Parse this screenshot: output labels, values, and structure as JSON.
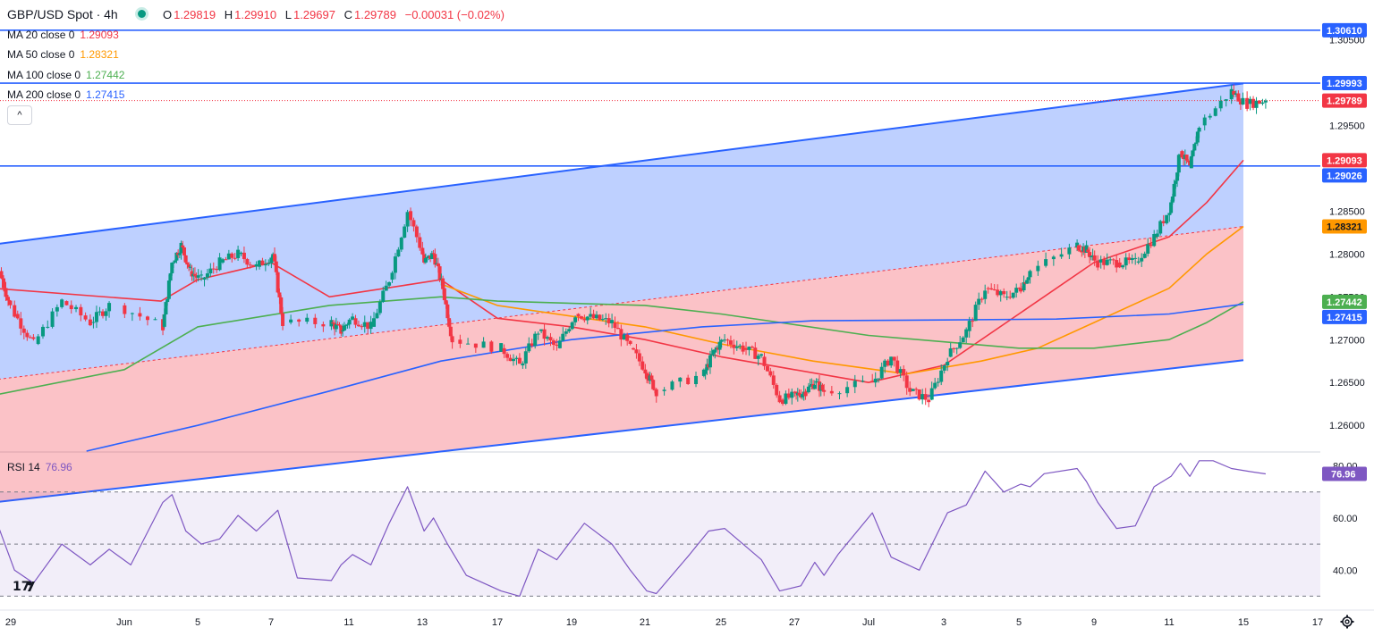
{
  "header": {
    "title": "GBP/USD Spot · 4h",
    "open_label": "O",
    "open": "1.29819",
    "high_label": "H",
    "high": "1.29910",
    "low_label": "L",
    "low": "1.29697",
    "close_label": "C",
    "close": "1.29789",
    "change": "−0.00031 (−0.02%)"
  },
  "legend": [
    {
      "label": "MA 20 close 0",
      "value": "1.29093",
      "color": "#f23645"
    },
    {
      "label": "MA 50 close 0",
      "value": "1.28321",
      "color": "#ff9800"
    },
    {
      "label": "MA 100 close 0",
      "value": "1.27442",
      "color": "#4caf50"
    },
    {
      "label": "MA 200 close 0",
      "value": "1.27415",
      "color": "#2962ff"
    }
  ],
  "collapse_label": "^",
  "rsi": {
    "label": "RSI 14",
    "value": "76.96",
    "color": "#7e57c2"
  },
  "logo_text": "17",
  "chart_data": {
    "type": "candlestick",
    "symbol": "GBP/USD Spot",
    "timeframe": "4h",
    "price_axis": {
      "ylim": [
        1.257,
        1.309
      ],
      "ticks": [
        "1.30500",
        "1.29500",
        "1.28500",
        "1.28000",
        "1.27500",
        "1.27000",
        "1.26500",
        "1.26000"
      ]
    },
    "x_axis": {
      "ticks": [
        {
          "label": "29",
          "date": "2024-05-29"
        },
        {
          "label": "Jun",
          "date": "2024-06-01"
        },
        {
          "label": "5",
          "date": "2024-06-05"
        },
        {
          "label": "7",
          "date": "2024-06-07"
        },
        {
          "label": "11",
          "date": "2024-06-11"
        },
        {
          "label": "13",
          "date": "2024-06-13"
        },
        {
          "label": "17",
          "date": "2024-06-17"
        },
        {
          "label": "19",
          "date": "2024-06-19"
        },
        {
          "label": "21",
          "date": "2024-06-21"
        },
        {
          "label": "25",
          "date": "2024-06-25"
        },
        {
          "label": "27",
          "date": "2024-06-27"
        },
        {
          "label": "Jul",
          "date": "2024-07-01"
        },
        {
          "label": "3",
          "date": "2024-07-03"
        },
        {
          "label": "5",
          "date": "2024-07-05"
        },
        {
          "label": "9",
          "date": "2024-07-09"
        },
        {
          "label": "11",
          "date": "2024-07-11"
        },
        {
          "label": "15",
          "date": "2024-07-15"
        },
        {
          "label": "17",
          "date": "2024-07-17"
        }
      ]
    },
    "close_path": [
      [
        "2024-05-28",
        1.278
      ],
      [
        "2024-05-29",
        1.273
      ],
      [
        "2024-05-29",
        1.2695
      ],
      [
        "2024-05-30",
        1.2745
      ],
      [
        "2024-05-31",
        1.272
      ],
      [
        "2024-05-31",
        1.274
      ],
      [
        "2024-06-03",
        1.2715
      ],
      [
        "2024-06-03",
        1.279
      ],
      [
        "2024-06-04",
        1.281
      ],
      [
        "2024-06-04",
        1.278
      ],
      [
        "2024-06-05",
        1.277
      ],
      [
        "2024-06-05",
        1.279
      ],
      [
        "2024-06-06",
        1.28
      ],
      [
        "2024-06-06",
        1.2785
      ],
      [
        "2024-06-07",
        1.28
      ],
      [
        "2024-06-07",
        1.272
      ],
      [
        "2024-06-10",
        1.272
      ],
      [
        "2024-06-10",
        1.271
      ],
      [
        "2024-06-11",
        1.2725
      ],
      [
        "2024-06-11",
        1.2715
      ],
      [
        "2024-06-12",
        1.277
      ],
      [
        "2024-06-12",
        1.285
      ],
      [
        "2024-06-13",
        1.279
      ],
      [
        "2024-06-13",
        1.28
      ],
      [
        "2024-06-14",
        1.276
      ],
      [
        "2024-06-14",
        1.27
      ],
      [
        "2024-06-17",
        1.269
      ],
      [
        "2024-06-17",
        1.267
      ],
      [
        "2024-06-18",
        1.271
      ],
      [
        "2024-06-18",
        1.269
      ],
      [
        "2024-06-19",
        1.273
      ],
      [
        "2024-06-19",
        1.2725
      ],
      [
        "2024-06-20",
        1.272
      ],
      [
        "2024-06-20",
        1.269
      ],
      [
        "2024-06-21",
        1.266
      ],
      [
        "2024-06-21",
        1.264
      ],
      [
        "2024-06-24",
        1.266
      ],
      [
        "2024-06-24",
        1.2685
      ],
      [
        "2024-06-25",
        1.27
      ],
      [
        "2024-06-25",
        1.269
      ],
      [
        "2024-06-26",
        1.268
      ],
      [
        "2024-06-26",
        1.263
      ],
      [
        "2024-06-27",
        1.2635
      ],
      [
        "2024-06-27",
        1.264
      ],
      [
        "2024-06-28",
        1.265
      ],
      [
        "2024-06-28",
        1.264
      ],
      [
        "2024-07-01",
        1.265
      ],
      [
        "2024-07-01",
        1.268
      ],
      [
        "2024-07-02",
        1.264
      ],
      [
        "2024-07-02",
        1.263
      ],
      [
        "2024-07-03",
        1.268
      ],
      [
        "2024-07-03",
        1.271
      ],
      [
        "2024-07-04",
        1.276
      ],
      [
        "2024-07-04",
        1.275
      ],
      [
        "2024-07-05",
        1.276
      ],
      [
        "2024-07-05",
        1.278
      ],
      [
        "2024-07-08",
        1.281
      ],
      [
        "2024-07-08",
        1.2805
      ],
      [
        "2024-07-09",
        1.279
      ],
      [
        "2024-07-09",
        1.279
      ],
      [
        "2024-07-10",
        1.279
      ],
      [
        "2024-07-10",
        1.282
      ],
      [
        "2024-07-11",
        1.286
      ],
      [
        "2024-07-11",
        1.292
      ],
      [
        "2024-07-12",
        1.29
      ],
      [
        "2024-07-12",
        1.295
      ],
      [
        "2024-07-14",
        1.299
      ],
      [
        "2024-07-15",
        1.2975
      ],
      [
        "2024-07-15",
        1.29789
      ]
    ],
    "moving_averages": [
      {
        "name": "MA 20",
        "color": "#f23645",
        "last": 1.29093,
        "points": [
          [
            "2024-05-28",
            1.276
          ],
          [
            "2024-06-03",
            1.2745
          ],
          [
            "2024-06-05",
            1.277
          ],
          [
            "2024-06-07",
            1.279
          ],
          [
            "2024-06-10",
            1.275
          ],
          [
            "2024-06-12",
            1.276
          ],
          [
            "2024-06-14",
            1.277
          ],
          [
            "2024-06-17",
            1.2725
          ],
          [
            "2024-06-19",
            1.2715
          ],
          [
            "2024-06-21",
            1.27
          ],
          [
            "2024-06-25",
            1.268
          ],
          [
            "2024-06-27",
            1.2665
          ],
          [
            "2024-07-01",
            1.265
          ],
          [
            "2024-07-03",
            1.267
          ],
          [
            "2024-07-05",
            1.273
          ],
          [
            "2024-07-09",
            1.279
          ],
          [
            "2024-07-11",
            1.282
          ],
          [
            "2024-07-13",
            1.286
          ],
          [
            "2024-07-15",
            1.29093
          ]
        ]
      },
      {
        "name": "MA 50",
        "color": "#ff9800",
        "last": 1.28321,
        "points": [
          [
            "2024-06-14",
            1.2765
          ],
          [
            "2024-06-17",
            1.274
          ],
          [
            "2024-06-21",
            1.2715
          ],
          [
            "2024-06-25",
            1.2695
          ],
          [
            "2024-06-28",
            1.2675
          ],
          [
            "2024-07-02",
            1.266
          ],
          [
            "2024-07-04",
            1.2675
          ],
          [
            "2024-07-06",
            1.269
          ],
          [
            "2024-07-09",
            1.272
          ],
          [
            "2024-07-11",
            1.276
          ],
          [
            "2024-07-13",
            1.28
          ],
          [
            "2024-07-15",
            1.28321
          ]
        ]
      },
      {
        "name": "MA 100",
        "color": "#4caf50",
        "last": 1.27442,
        "points": [
          [
            "2024-05-28",
            1.2635
          ],
          [
            "2024-06-01",
            1.2665
          ],
          [
            "2024-06-05",
            1.2715
          ],
          [
            "2024-06-10",
            1.274
          ],
          [
            "2024-06-14",
            1.275
          ],
          [
            "2024-06-17",
            1.2745
          ],
          [
            "2024-06-21",
            1.274
          ],
          [
            "2024-06-25",
            1.273
          ],
          [
            "2024-07-01",
            1.2705
          ],
          [
            "2024-07-05",
            1.269
          ],
          [
            "2024-07-09",
            1.269
          ],
          [
            "2024-07-11",
            1.27
          ],
          [
            "2024-07-13",
            1.272
          ],
          [
            "2024-07-15",
            1.27442
          ]
        ]
      },
      {
        "name": "MA 200",
        "color": "#2962ff",
        "last": 1.27415,
        "points": [
          [
            "2024-05-31",
            1.257
          ],
          [
            "2024-06-05",
            1.26
          ],
          [
            "2024-06-10",
            1.264
          ],
          [
            "2024-06-14",
            1.2675
          ],
          [
            "2024-06-19",
            1.27
          ],
          [
            "2024-06-24",
            1.2715
          ],
          [
            "2024-06-28",
            1.2722
          ],
          [
            "2024-07-03",
            1.2723
          ],
          [
            "2024-07-07",
            1.2724
          ],
          [
            "2024-07-11",
            1.273
          ],
          [
            "2024-07-15",
            1.27415
          ]
        ]
      }
    ],
    "horizontal_levels": [
      {
        "value": 1.3061,
        "label": "1.30610",
        "color": "#2962ff"
      },
      {
        "value": 1.29993,
        "label": "1.29993",
        "color": "#2962ff"
      },
      {
        "value": 1.29026,
        "label": "1.29026",
        "color": "#2962ff"
      }
    ],
    "current_price": {
      "value": 1.29789,
      "label": "1.29789",
      "color": "#f23645"
    },
    "channel": {
      "upper": [
        [
          "2024-05-28",
          1.2811
        ],
        [
          "2024-07-15",
          1.2999
        ]
      ],
      "middle": [
        [
          "2024-05-28",
          1.2653
        ],
        [
          "2024-07-15",
          1.2832
        ]
      ],
      "lower": [
        [
          "2024-05-28",
          1.251
        ],
        [
          "2024-07-15",
          1.2676
        ]
      ]
    },
    "price_labels": [
      {
        "value": 1.3061,
        "label": "1.30610",
        "bg": "#2962ff",
        "fg": "#ffffff"
      },
      {
        "value": 1.29993,
        "label": "1.29993",
        "bg": "#2962ff",
        "fg": "#ffffff"
      },
      {
        "value": 1.29789,
        "label": "1.29789",
        "bg": "#f23645",
        "fg": "#ffffff"
      },
      {
        "value": 1.29093,
        "label": "1.29093",
        "bg": "#f23645",
        "fg": "#ffffff"
      },
      {
        "value": 1.29026,
        "label": "1.29026",
        "bg": "#2962ff",
        "fg": "#ffffff"
      },
      {
        "value": 1.28321,
        "label": "1.28321",
        "bg": "#ff9800",
        "fg": "#131722"
      },
      {
        "value": 1.27442,
        "label": "1.27442",
        "bg": "#4caf50",
        "fg": "#ffffff"
      },
      {
        "value": 1.27415,
        "label": "1.27415",
        "bg": "#2962ff",
        "fg": "#ffffff"
      }
    ],
    "rsi": {
      "period": 14,
      "last": 76.96,
      "ylim": [
        25,
        85
      ],
      "ticks": [
        "80.00",
        "60.00",
        "40.00"
      ],
      "bands": [
        70,
        50,
        30
      ],
      "points": [
        [
          "2024-05-28",
          56
        ],
        [
          "2024-05-29",
          40
        ],
        [
          "2024-05-29",
          35
        ],
        [
          "2024-05-30",
          50
        ],
        [
          "2024-05-31",
          42
        ],
        [
          "2024-05-31",
          48
        ],
        [
          "2024-06-01",
          42
        ],
        [
          "2024-06-03",
          66
        ],
        [
          "2024-06-03",
          69
        ],
        [
          "2024-06-04",
          55
        ],
        [
          "2024-06-05",
          50
        ],
        [
          "2024-06-05",
          52
        ],
        [
          "2024-06-06",
          61
        ],
        [
          "2024-06-06",
          55
        ],
        [
          "2024-06-07",
          63
        ],
        [
          "2024-06-08",
          37
        ],
        [
          "2024-06-10",
          36
        ],
        [
          "2024-06-10",
          42
        ],
        [
          "2024-06-11",
          46
        ],
        [
          "2024-06-11",
          42
        ],
        [
          "2024-06-12",
          58
        ],
        [
          "2024-06-12",
          72
        ],
        [
          "2024-06-13",
          55
        ],
        [
          "2024-06-13",
          60
        ],
        [
          "2024-06-14",
          50
        ],
        [
          "2024-06-15",
          38
        ],
        [
          "2024-06-17",
          32
        ],
        [
          "2024-06-17",
          30
        ],
        [
          "2024-06-18",
          48
        ],
        [
          "2024-06-18",
          44
        ],
        [
          "2024-06-19",
          58
        ],
        [
          "2024-06-20",
          50
        ],
        [
          "2024-06-20",
          40
        ],
        [
          "2024-06-21",
          32
        ],
        [
          "2024-06-21",
          31
        ],
        [
          "2024-06-23",
          46
        ],
        [
          "2024-06-24",
          55
        ],
        [
          "2024-06-25",
          56
        ],
        [
          "2024-06-25",
          50
        ],
        [
          "2024-06-26",
          44
        ],
        [
          "2024-06-26",
          32
        ],
        [
          "2024-06-27",
          34
        ],
        [
          "2024-06-28",
          43
        ],
        [
          "2024-06-28",
          38
        ],
        [
          "2024-06-29",
          46
        ],
        [
          "2024-07-01",
          62
        ],
        [
          "2024-07-01",
          45
        ],
        [
          "2024-07-02",
          40
        ],
        [
          "2024-07-03",
          62
        ],
        [
          "2024-07-03",
          65
        ],
        [
          "2024-07-04",
          78
        ],
        [
          "2024-07-04",
          70
        ],
        [
          "2024-07-05",
          73
        ],
        [
          "2024-07-05",
          72
        ],
        [
          "2024-07-06",
          77
        ],
        [
          "2024-07-08",
          79
        ],
        [
          "2024-07-08",
          74
        ],
        [
          "2024-07-09",
          66
        ],
        [
          "2024-07-09",
          56
        ],
        [
          "2024-07-10",
          57
        ],
        [
          "2024-07-10",
          72
        ],
        [
          "2024-07-11",
          76
        ],
        [
          "2024-07-11",
          81
        ],
        [
          "2024-07-12",
          76
        ],
        [
          "2024-07-12",
          82
        ],
        [
          "2024-07-13",
          82
        ],
        [
          "2024-07-14",
          79
        ],
        [
          "2024-07-15",
          78
        ],
        [
          "2024-07-15",
          76.96
        ]
      ]
    }
  }
}
